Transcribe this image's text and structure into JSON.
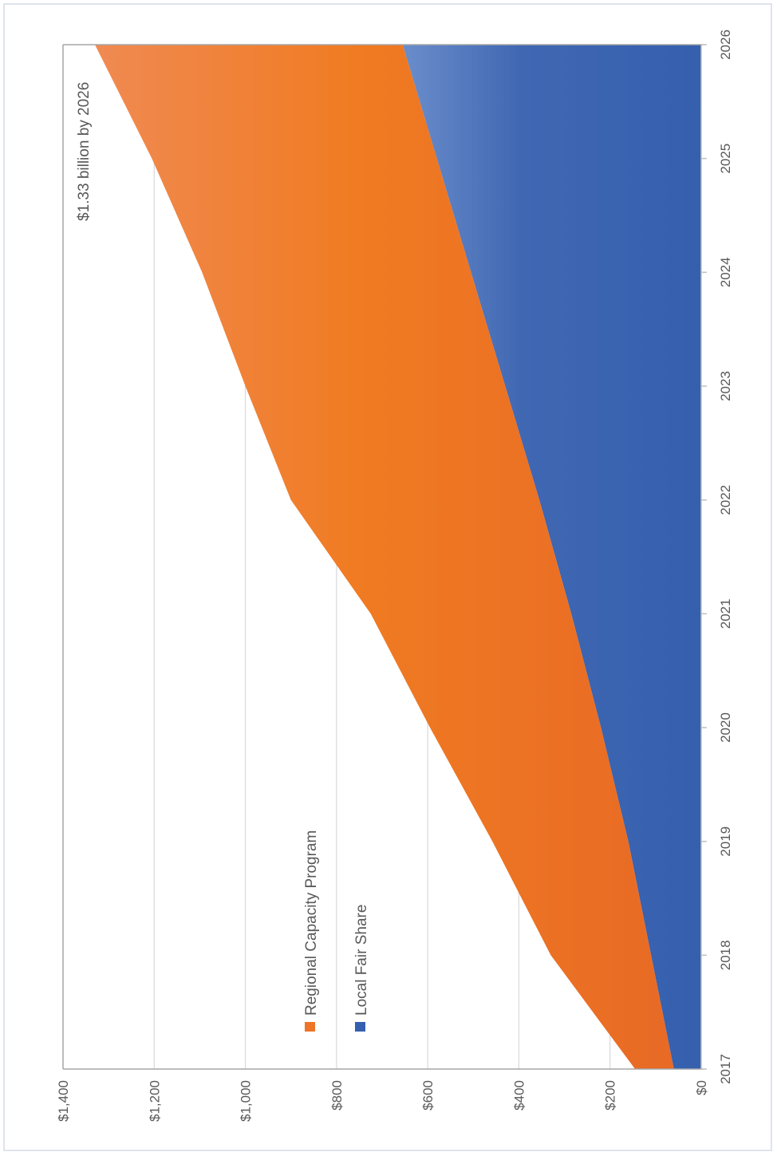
{
  "chart_data": {
    "type": "area",
    "stacked": true,
    "orientation": "rotated-90-clockwise",
    "x": [
      "2017",
      "2018",
      "2019",
      "2020",
      "2021",
      "2022",
      "2023",
      "2024",
      "2025",
      "2026"
    ],
    "series": [
      {
        "name": "Local Fair Share",
        "color": "#3560ae",
        "values": [
          60,
          110,
          160,
          220,
          285,
          355,
          430,
          505,
          580,
          655
        ]
      },
      {
        "name": "Regional Capacity Program",
        "color": "#ee7428",
        "values": [
          85,
          220,
          298,
          375,
          440,
          545,
          570,
          590,
          625,
          675
        ]
      }
    ],
    "ylim": [
      0,
      1400
    ],
    "yticks": [
      "$0",
      "$200",
      "$400",
      "$600",
      "$800",
      "$1,000",
      "$1,200",
      "$1,400"
    ],
    "ytick_values": [
      0,
      200,
      400,
      600,
      800,
      1000,
      1200,
      1400
    ],
    "grid": true,
    "legend_position": "left",
    "annotation": "$1.33 billion by 2026"
  }
}
